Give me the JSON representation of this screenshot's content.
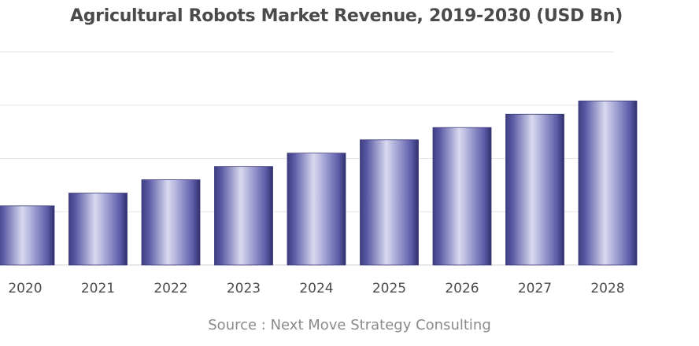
{
  "chart_data": {
    "type": "bar",
    "title": "Agricultural Robots Market Revenue, 2019-2030 (USD Bn)",
    "source": "Source : Next Move Strategy Consulting",
    "categories": [
      "2020",
      "2021",
      "2022",
      "2023",
      "2024",
      "2025",
      "2026",
      "2027",
      "2028"
    ],
    "values": [
      11.1,
      13.5,
      16.0,
      18.5,
      21.0,
      23.5,
      25.8,
      28.3,
      30.8
    ],
    "xlabel": "",
    "ylabel": "",
    "ylim": [
      0,
      40
    ],
    "grid": true,
    "legend": "none",
    "bar_color": "#6f6fb8",
    "bar_edge_color": "#3a3a7a"
  }
}
